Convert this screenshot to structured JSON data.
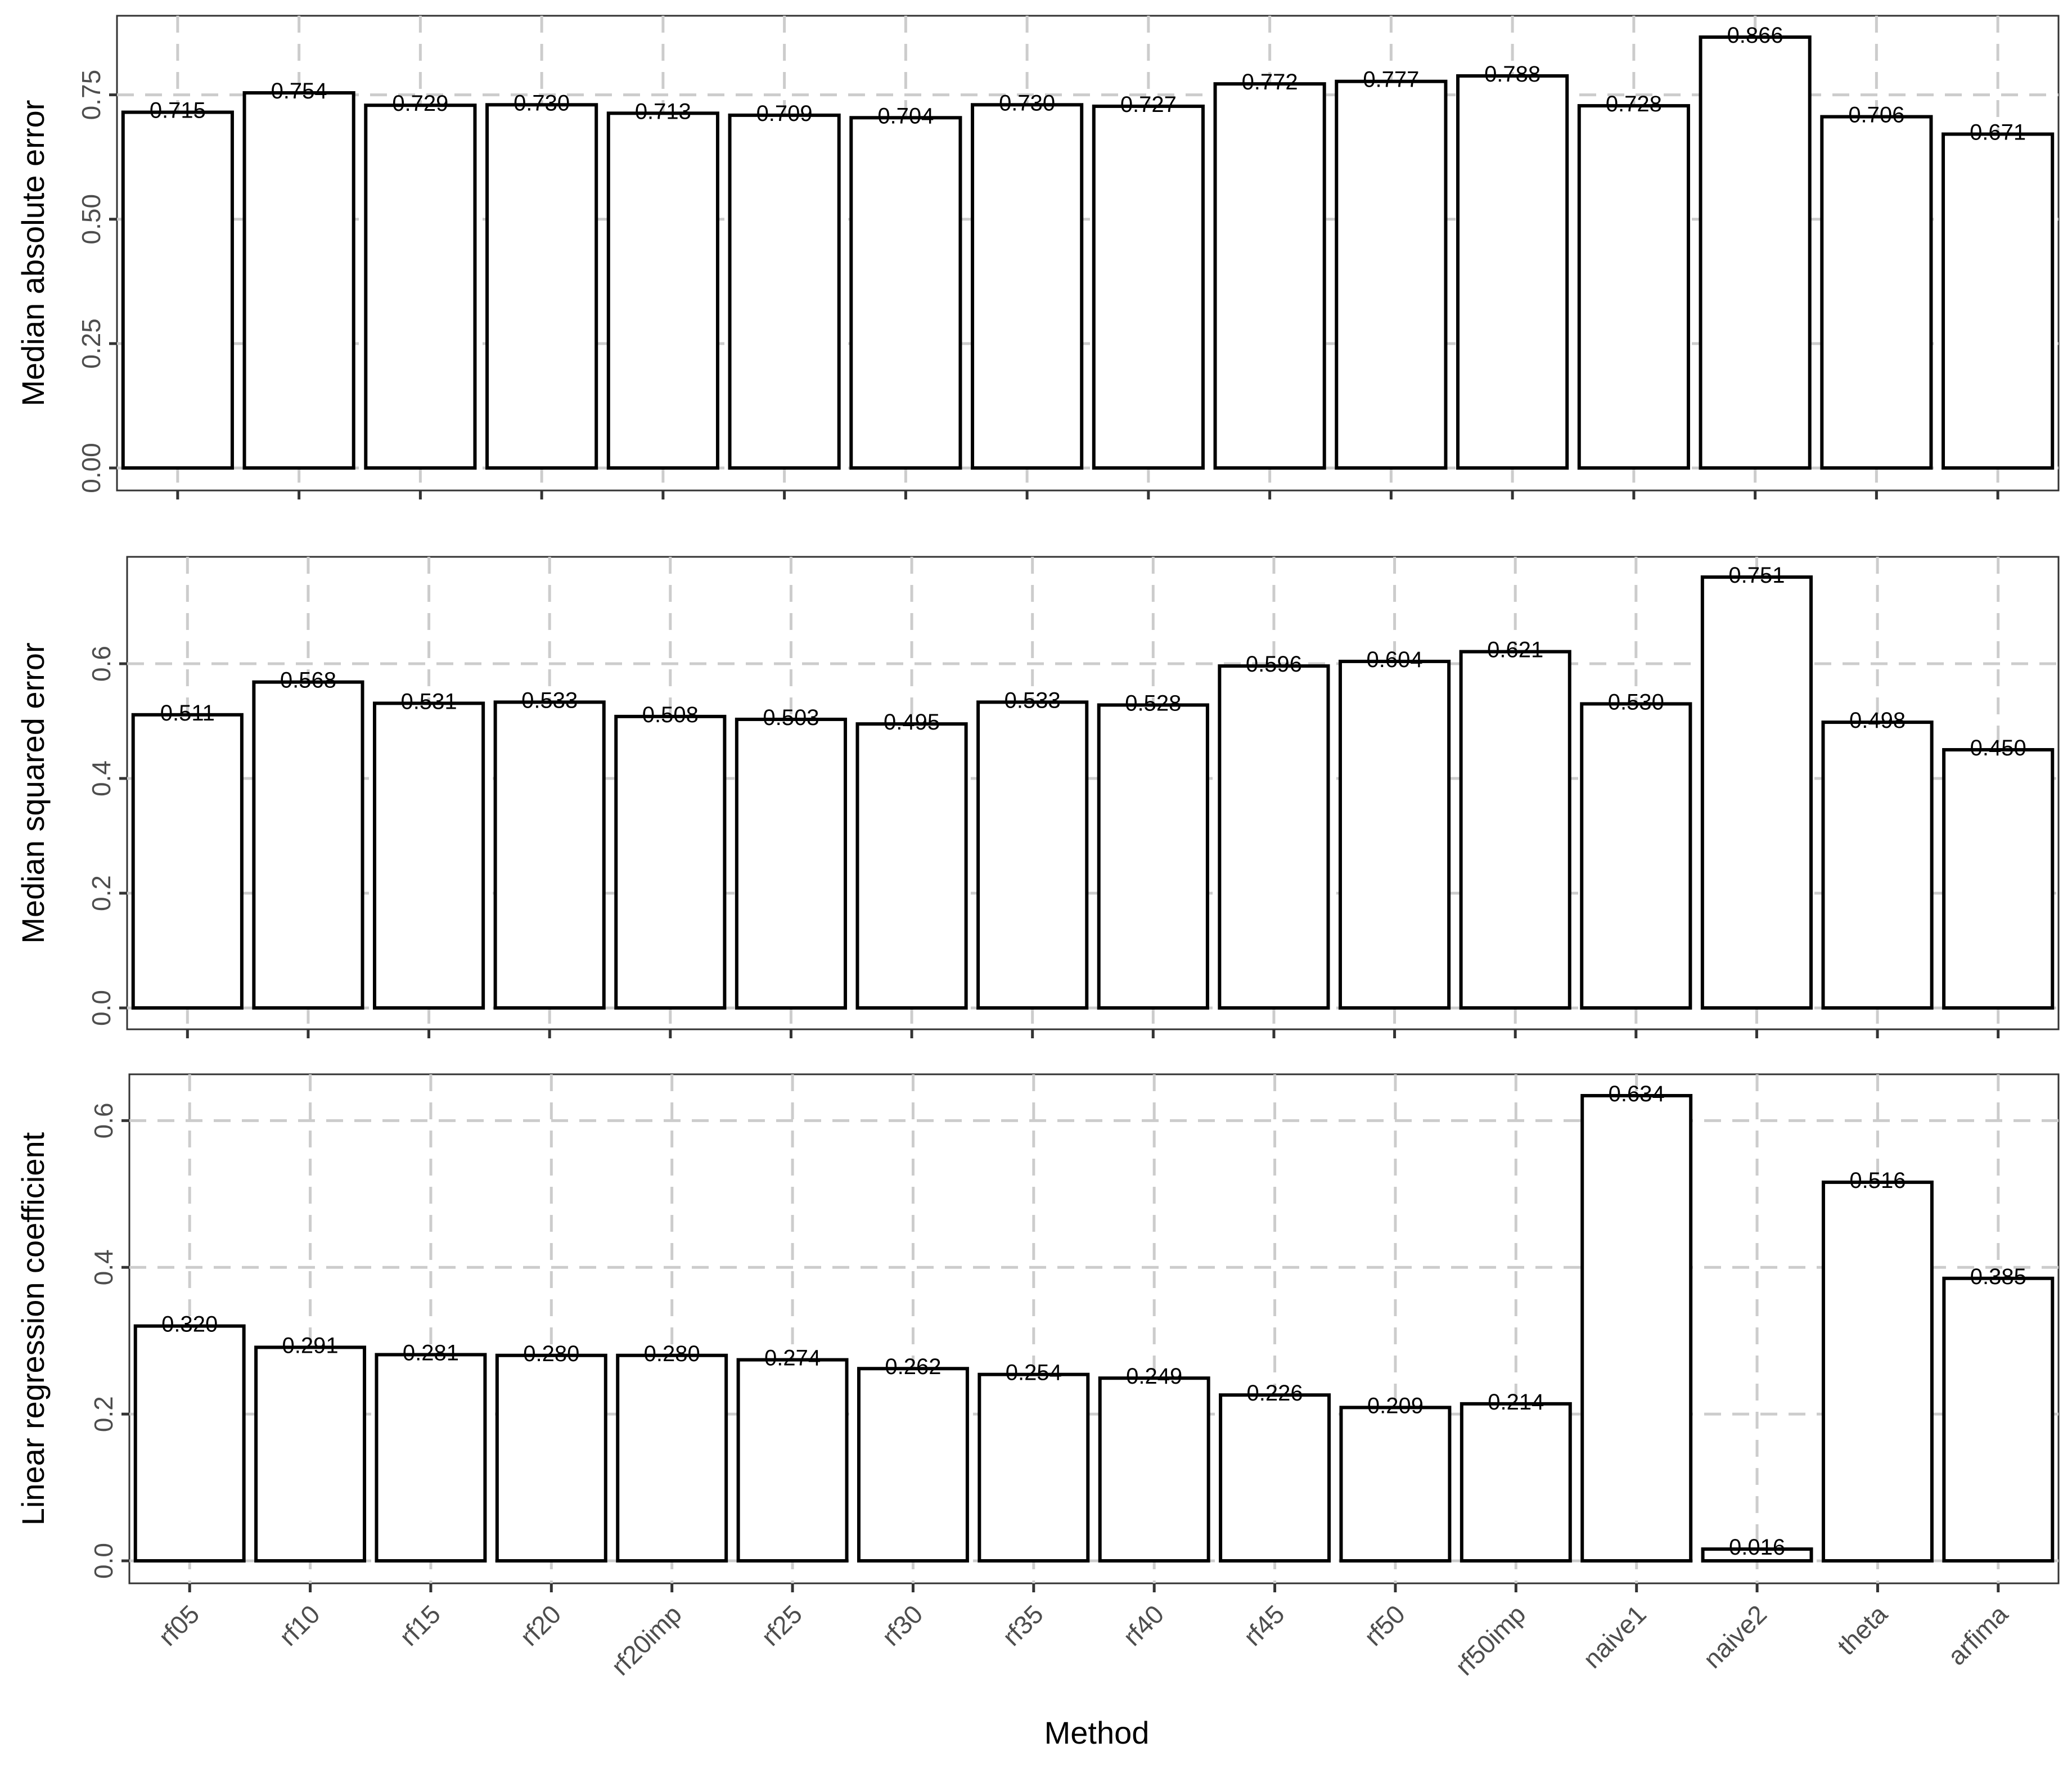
{
  "chart_data": {
    "type": "bar",
    "xlabel": "Method",
    "categories": [
      "rf05",
      "rf10",
      "rf15",
      "rf20",
      "rf20imp",
      "rf25",
      "rf30",
      "rf35",
      "rf40",
      "rf45",
      "rf50",
      "rf50imp",
      "naive1",
      "naive2",
      "theta",
      "arfima"
    ],
    "grid": true,
    "panels": [
      {
        "ylabel": "Median absolute error",
        "ylim": [
          0,
          0.866
        ],
        "yticks": [
          0.0,
          0.25,
          0.5,
          0.75
        ],
        "ytick_labels": [
          "0.00",
          "0.25",
          "0.50",
          "0.75"
        ],
        "values": [
          0.715,
          0.754,
          0.729,
          0.73,
          0.713,
          0.709,
          0.704,
          0.73,
          0.727,
          0.772,
          0.777,
          0.788,
          0.728,
          0.866,
          0.706,
          0.671
        ],
        "value_labels": [
          "0.715",
          "0.754",
          "0.729",
          "0.730",
          "0.713",
          "0.709",
          "0.704",
          "0.730",
          "0.727",
          "0.772",
          "0.777",
          "0.788",
          "0.728",
          "0.866",
          "0.706",
          "0.671"
        ]
      },
      {
        "ylabel": "Median squared error",
        "ylim": [
          0,
          0.751
        ],
        "yticks": [
          0.0,
          0.2,
          0.4,
          0.6
        ],
        "ytick_labels": [
          "0.0",
          "0.2",
          "0.4",
          "0.6"
        ],
        "values": [
          0.511,
          0.568,
          0.531,
          0.533,
          0.508,
          0.503,
          0.495,
          0.533,
          0.528,
          0.596,
          0.604,
          0.621,
          0.53,
          0.751,
          0.498,
          0.45
        ],
        "value_labels": [
          "0.511",
          "0.568",
          "0.531",
          "0.533",
          "0.508",
          "0.503",
          "0.495",
          "0.533",
          "0.528",
          "0.596",
          "0.604",
          "0.621",
          "0.530",
          "0.751",
          "0.498",
          "0.450"
        ]
      },
      {
        "ylabel": "Linear regression coefficient",
        "ylim": [
          0,
          0.634
        ],
        "yticks": [
          0.0,
          0.2,
          0.4,
          0.6
        ],
        "ytick_labels": [
          "0.0",
          "0.2",
          "0.4",
          "0.6"
        ],
        "values": [
          0.32,
          0.291,
          0.281,
          0.28,
          0.28,
          0.274,
          0.262,
          0.254,
          0.249,
          0.226,
          0.209,
          0.214,
          0.634,
          0.016,
          0.516,
          0.385
        ],
        "value_labels": [
          "0.320",
          "0.291",
          "0.281",
          "0.280",
          "0.280",
          "0.274",
          "0.262",
          "0.254",
          "0.249",
          "0.226",
          "0.209",
          "0.214",
          "0.634",
          "0.016",
          "0.516",
          "0.385"
        ]
      }
    ]
  }
}
